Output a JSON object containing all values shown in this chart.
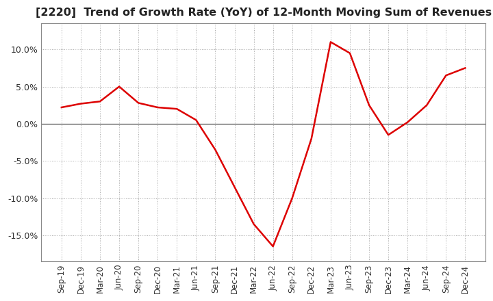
{
  "title": "[2220]  Trend of Growth Rate (YoY) of 12-Month Moving Sum of Revenues",
  "title_fontsize": 11.5,
  "line_color": "#dd0000",
  "background_color": "#ffffff",
  "grid_color": "#aaaaaa",
  "x_labels": [
    "Sep-19",
    "Dec-19",
    "Mar-20",
    "Jun-20",
    "Sep-20",
    "Dec-20",
    "Mar-21",
    "Jun-21",
    "Sep-21",
    "Dec-21",
    "Mar-22",
    "Jun-22",
    "Sep-22",
    "Dec-22",
    "Mar-23",
    "Jun-23",
    "Sep-23",
    "Dec-23",
    "Mar-24",
    "Jun-24",
    "Sep-24",
    "Dec-24"
  ],
  "y_values": [
    2.2,
    2.7,
    3.0,
    5.0,
    2.8,
    2.2,
    2.0,
    0.5,
    -3.5,
    -8.5,
    -13.5,
    -16.5,
    -10.0,
    -2.0,
    11.0,
    9.5,
    2.5,
    -1.5,
    0.2,
    2.5,
    6.5,
    7.5
  ],
  "ylim": [
    -18.5,
    13.5
  ],
  "yticks": [
    10.0,
    5.0,
    0.0,
    -5.0,
    -10.0,
    -15.0
  ]
}
